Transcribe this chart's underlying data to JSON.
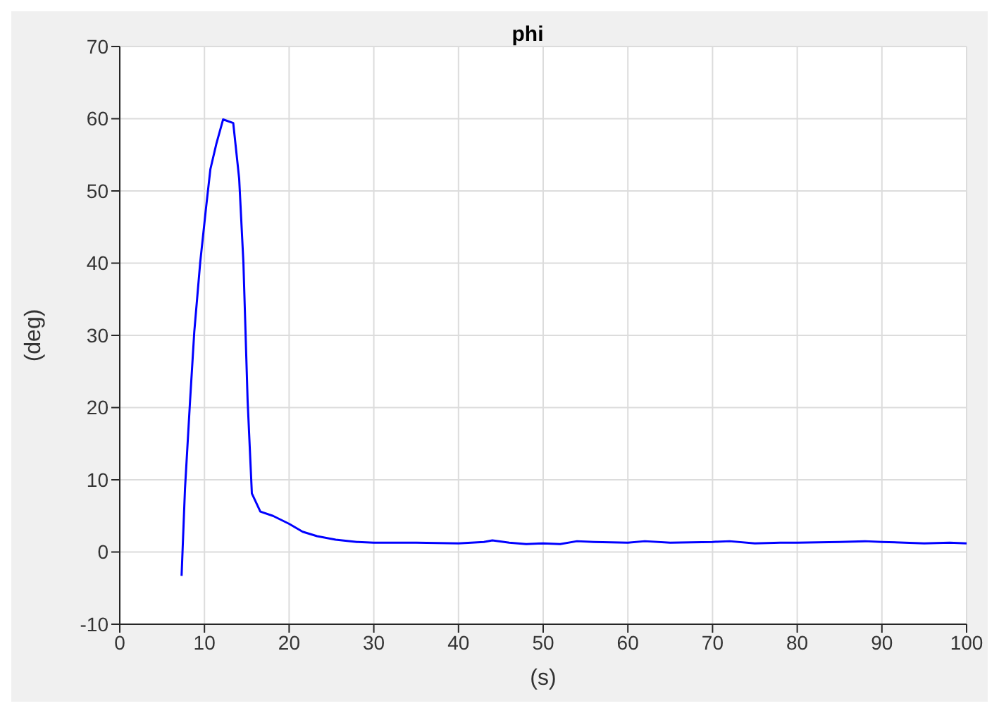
{
  "chart_data": {
    "type": "line",
    "title": "phi",
    "xlabel": "(s)",
    "ylabel": "(deg)",
    "xlim": [
      0,
      100
    ],
    "xticks": [
      0,
      10,
      20,
      30,
      40,
      50,
      60,
      70,
      80,
      90,
      100
    ],
    "ylim": [
      -10,
      70
    ],
    "yticks": [
      -10,
      0,
      10,
      20,
      30,
      40,
      50,
      60,
      70
    ],
    "grid": true,
    "legend": false,
    "marker": "none",
    "line_style": "solid",
    "series": [
      {
        "color": "#0000ff",
        "x": [
          7.3,
          7.7,
          8.3,
          8.8,
          9.5,
          10.2,
          10.7,
          11.4,
          12.2,
          13.4,
          14.1,
          14.6,
          15.1,
          15.6,
          16.6,
          18.1,
          20,
          21.6,
          23.3,
          25.5,
          28,
          30,
          35,
          40,
          43,
          44,
          46,
          48,
          50,
          52,
          54,
          56,
          60,
          62,
          65,
          70,
          72,
          75,
          78,
          80,
          85,
          88,
          90,
          95,
          98,
          100
        ],
        "values": [
          -3.3,
          8.7,
          20.9,
          30.5,
          40.1,
          47.8,
          53,
          56.5,
          59.9,
          59.4,
          51.7,
          40.1,
          20.9,
          8.1,
          5.6,
          5,
          3.9,
          2.8,
          2.2,
          1.7,
          1.4,
          1.3,
          1.3,
          1.2,
          1.4,
          1.6,
          1.3,
          1.1,
          1.2,
          1.1,
          1.5,
          1.4,
          1.3,
          1.5,
          1.3,
          1.4,
          1.5,
          1.2,
          1.3,
          1.3,
          1.4,
          1.5,
          1.4,
          1.2,
          1.3,
          1.2
        ]
      }
    ]
  }
}
